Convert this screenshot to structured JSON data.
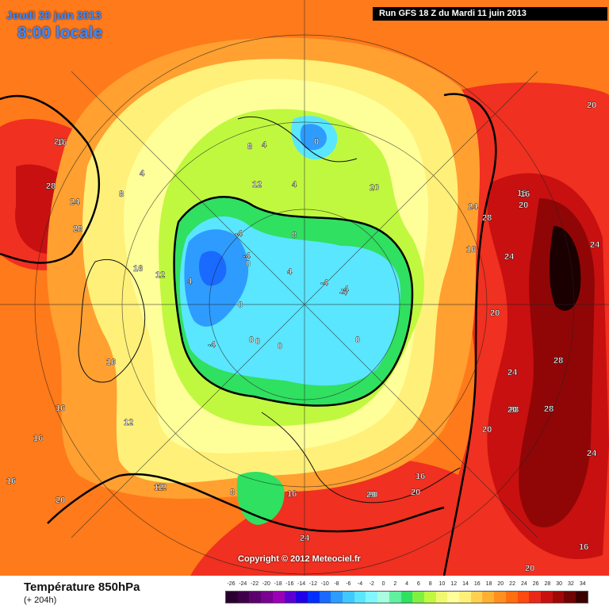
{
  "header": {
    "date": "Jeudi 20 juin 2013",
    "time": "8:00 locale",
    "run": "Run GFS 18 Z du Mardi 11 juin 2013"
  },
  "footer": {
    "parameter": "Température 850hPa",
    "lead": "(+ 204h)",
    "copyright": "Copyright © 2012 Meteociel.fr"
  },
  "legend": {
    "ticks": [
      "-26",
      "-24",
      "-22",
      "-20",
      "-18",
      "-16",
      "-14",
      "-12",
      "-10",
      "-8",
      "-6",
      "-4",
      "-2",
      "0",
      "2",
      "4",
      "6",
      "8",
      "10",
      "12",
      "14",
      "16",
      "18",
      "20",
      "22",
      "24",
      "26",
      "28",
      "30",
      "32",
      "34"
    ],
    "colors": [
      "#2a0030",
      "#3f004a",
      "#5c006e",
      "#7a0090",
      "#9a00b4",
      "#5a00d0",
      "#2000e6",
      "#0030ff",
      "#1a6aff",
      "#2e9cff",
      "#40c8ff",
      "#5ae6ff",
      "#80f6ff",
      "#a8ffe0",
      "#60f0a0",
      "#30e060",
      "#80f040",
      "#c0f840",
      "#f0f870",
      "#ffff9a",
      "#fff07a",
      "#ffd050",
      "#ffb030",
      "#ff9020",
      "#ff6e10",
      "#ff4a10",
      "#e82818",
      "#c81010",
      "#a00808",
      "#700404",
      "#3a0000"
    ]
  },
  "map_labels": [
    {
      "text": "20"
    },
    {
      "text": "28"
    },
    {
      "text": "24"
    },
    {
      "text": "28"
    },
    {
      "text": "16"
    },
    {
      "text": "12"
    },
    {
      "text": "4"
    },
    {
      "text": "8"
    },
    {
      "text": "4"
    },
    {
      "text": "0"
    },
    {
      "text": "12"
    },
    {
      "text": "4"
    },
    {
      "text": "-4"
    },
    {
      "text": "-4"
    },
    {
      "text": "0"
    },
    {
      "text": "-4"
    },
    {
      "text": "0"
    },
    {
      "text": "-4"
    },
    {
      "text": "-4"
    },
    {
      "text": "0"
    },
    {
      "text": "0"
    },
    {
      "text": "0"
    },
    {
      "text": "-4"
    },
    {
      "text": "0"
    },
    {
      "text": "4"
    },
    {
      "text": "4"
    },
    {
      "text": "8"
    },
    {
      "text": "8"
    },
    {
      "text": "20"
    },
    {
      "text": "24"
    },
    {
      "text": "28"
    },
    {
      "text": "16"
    },
    {
      "text": "15"
    },
    {
      "text": "20"
    },
    {
      "text": "16"
    },
    {
      "text": "24"
    },
    {
      "text": "20"
    },
    {
      "text": "24"
    },
    {
      "text": "20"
    },
    {
      "text": "24"
    },
    {
      "text": "28"
    },
    {
      "text": "28"
    },
    {
      "text": "28"
    },
    {
      "text": "20"
    },
    {
      "text": "24"
    },
    {
      "text": "16"
    },
    {
      "text": "20"
    },
    {
      "text": "20"
    },
    {
      "text": "20"
    },
    {
      "text": "16"
    },
    {
      "text": "16"
    },
    {
      "text": "20"
    },
    {
      "text": "24"
    },
    {
      "text": "16"
    },
    {
      "text": "12"
    },
    {
      "text": "12"
    },
    {
      "text": "8"
    },
    {
      "text": "16"
    },
    {
      "text": "16"
    },
    {
      "text": "16"
    },
    {
      "text": "12"
    },
    {
      "text": "16"
    },
    {
      "text": "20"
    },
    {
      "text": "20"
    }
  ]
}
